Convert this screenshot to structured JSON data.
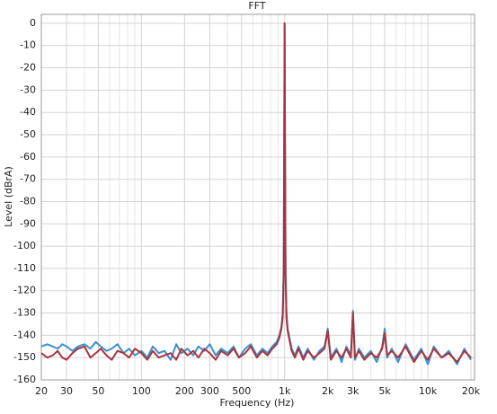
{
  "chart_data": {
    "type": "line",
    "title": "FFT",
    "x_label": "Frequency (Hz)",
    "y_label": "Level (dBrA)",
    "x_log": true,
    "grid": true,
    "xlim": [
      20,
      20000
    ],
    "ylim": [
      -160,
      4
    ],
    "xticks": [
      20,
      30,
      50,
      100,
      200,
      300,
      500,
      {
        "value": 1000,
        "label": "1k"
      },
      {
        "value": 2000,
        "label": "2k"
      },
      {
        "value": 3000,
        "label": "3k"
      },
      {
        "value": 5000,
        "label": "5k"
      },
      {
        "value": 10000,
        "label": "10k"
      },
      {
        "value": 20000,
        "label": "20k"
      }
    ],
    "x_minor_ticks": [
      40,
      60,
      70,
      80,
      90,
      400,
      600,
      700,
      800,
      900,
      4000,
      6000,
      7000,
      8000,
      9000
    ],
    "yticks": [
      0,
      -10,
      -20,
      -30,
      -40,
      -50,
      -60,
      -70,
      -80,
      -90,
      -100,
      -110,
      -120,
      -130,
      -140,
      -150,
      -160
    ],
    "x": [
      20,
      22,
      24,
      26,
      28,
      30,
      33,
      36,
      40,
      44,
      48,
      52,
      57,
      62,
      68,
      75,
      82,
      90,
      100,
      110,
      120,
      132,
      145,
      160,
      175,
      190,
      210,
      230,
      250,
      275,
      300,
      330,
      360,
      400,
      440,
      480,
      530,
      580,
      640,
      700,
      760,
      820,
      880,
      920,
      950,
      970,
      985,
      995,
      1000,
      1005,
      1015,
      1030,
      1050,
      1080,
      1120,
      1180,
      1250,
      1350,
      1450,
      1600,
      1750,
      1900,
      2000,
      2100,
      2300,
      2500,
      2700,
      2900,
      3000,
      3100,
      3300,
      3600,
      4000,
      4400,
      4800,
      5000,
      5200,
      5600,
      6200,
      7000,
      8000,
      9000,
      10000,
      11000,
      12500,
      14000,
      16000,
      18000,
      20000
    ],
    "series": [
      {
        "color": "#3b8fc9",
        "values": [
          -145,
          -144,
          -145,
          -146,
          -144,
          -145,
          -147,
          -145,
          -144,
          -146,
          -143,
          -145,
          -147,
          -146,
          -144,
          -148,
          -146,
          -149,
          -147,
          -150,
          -145,
          -148,
          -147,
          -151,
          -144,
          -148,
          -146,
          -149,
          -145,
          -147,
          -144,
          -149,
          -146,
          -148,
          -145,
          -150,
          -146,
          -144,
          -149,
          -146,
          -148,
          -145,
          -143,
          -140,
          -136,
          -130,
          -110,
          -40,
          0,
          -45,
          -112,
          -130,
          -137,
          -141,
          -146,
          -149,
          -145,
          -150,
          -146,
          -151,
          -147,
          -145,
          -137,
          -150,
          -146,
          -152,
          -145,
          -149,
          -129,
          -151,
          -146,
          -150,
          -147,
          -152,
          -145,
          -137,
          -150,
          -146,
          -152,
          -144,
          -151,
          -146,
          -153,
          -145,
          -150,
          -147,
          -153,
          -146,
          -151
        ]
      },
      {
        "color": "#a8343f",
        "values": [
          -148,
          -150,
          -149,
          -147,
          -150,
          -151,
          -148,
          -146,
          -145,
          -150,
          -148,
          -146,
          -149,
          -151,
          -147,
          -148,
          -150,
          -146,
          -148,
          -151,
          -147,
          -150,
          -149,
          -148,
          -151,
          -146,
          -149,
          -147,
          -150,
          -146,
          -148,
          -151,
          -147,
          -149,
          -146,
          -150,
          -148,
          -145,
          -150,
          -147,
          -149,
          -146,
          -144,
          -141,
          -137,
          -132,
          -112,
          -38,
          0,
          -42,
          -113,
          -132,
          -138,
          -142,
          -147,
          -150,
          -146,
          -151,
          -147,
          -150,
          -148,
          -146,
          -138,
          -151,
          -147,
          -150,
          -146,
          -150,
          -130,
          -150,
          -147,
          -151,
          -148,
          -150,
          -146,
          -139,
          -149,
          -147,
          -150,
          -145,
          -152,
          -147,
          -151,
          -146,
          -150,
          -148,
          -152,
          -147,
          -150
        ]
      }
    ]
  }
}
